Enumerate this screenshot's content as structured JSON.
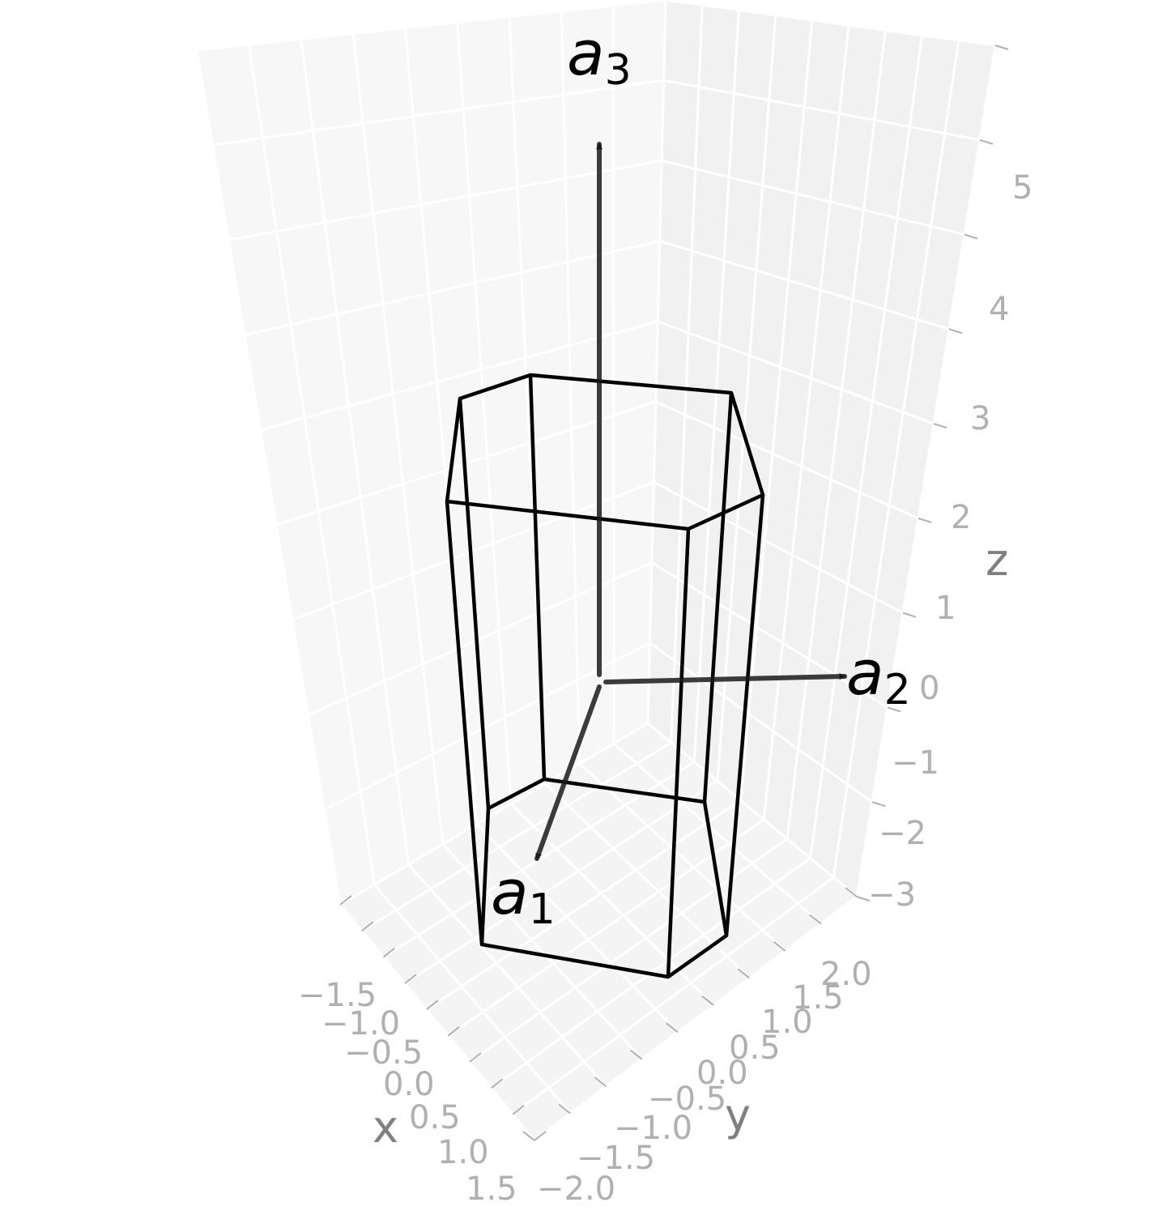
{
  "chart_data": {
    "type": "3d-wireframe",
    "background": "#ffffff",
    "pane_colors": {
      "left": "#f7f7f7",
      "right": "#f1f1f1",
      "floor": "#f4f4f4",
      "grid": "#ffffff"
    },
    "axes": {
      "x": {
        "label": "x",
        "ticks": [
          "−1.5",
          "−1.0",
          "−0.5",
          "0.0",
          "0.5",
          "1.0",
          "1.5"
        ],
        "lim": [
          -1.5,
          1.5
        ]
      },
      "y": {
        "label": "y",
        "ticks": [
          "−2.0",
          "−1.5",
          "−1.0",
          "−0.5",
          "0.0",
          "0.5",
          "1.0",
          "1.5",
          "2.0"
        ],
        "lim": [
          -2.0,
          2.0
        ]
      },
      "z": {
        "label": "z",
        "ticks": [
          "−3",
          "−2",
          "−1",
          "0",
          "1",
          "2",
          "3",
          "4",
          "5"
        ],
        "lim": [
          -3,
          5
        ]
      }
    },
    "vectors": [
      {
        "name": "a",
        "sub": "1",
        "from": [
          0,
          0,
          0
        ],
        "to": [
          1.0,
          0.0,
          0.0
        ],
        "color": "#000000"
      },
      {
        "name": "a",
        "sub": "2",
        "from": [
          0,
          0,
          0
        ],
        "to": [
          0.0,
          1.732,
          0.0
        ],
        "color": "#000000"
      },
      {
        "name": "a",
        "sub": "3",
        "from": [
          0,
          0,
          0
        ],
        "to": [
          0.0,
          0.0,
          4.0
        ],
        "color": "#000000"
      }
    ],
    "prism": {
      "shape": "hexagonal",
      "z_bottom": -2.5,
      "z_top": 2.5,
      "edge_color": "#000000"
    },
    "grid": true
  }
}
